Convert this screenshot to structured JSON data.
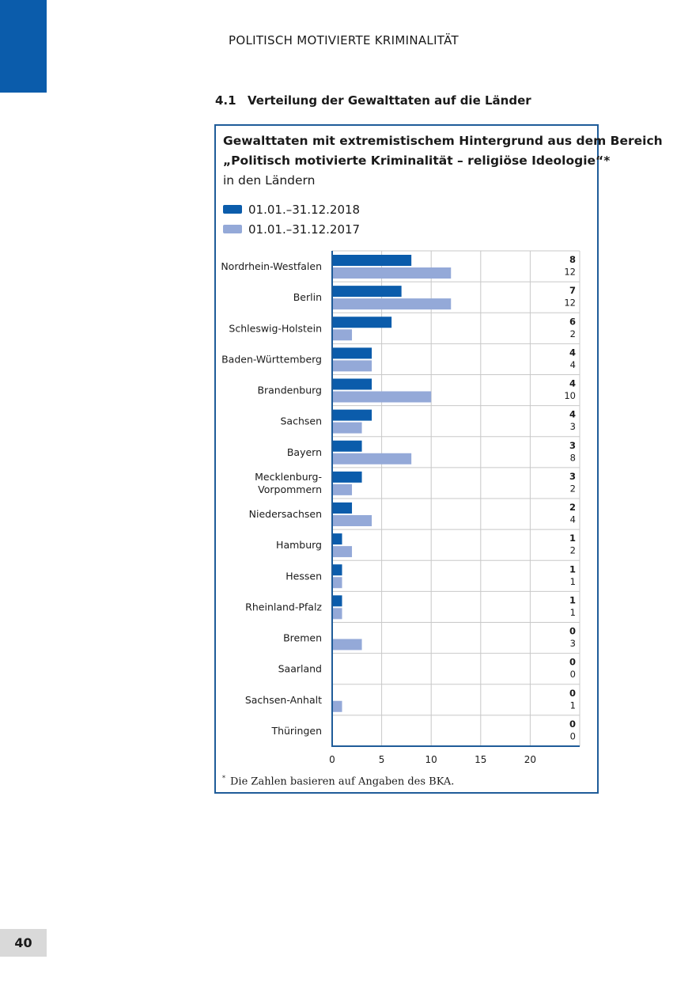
{
  "header": {
    "running_title": "POLITISCH MOTIVIERTE KRIMINALITÄT",
    "section_number": "4.1",
    "section_title": "Verteilung der Gewalttaten auf die Länder"
  },
  "page_number": "40",
  "footnote": {
    "mark": "*",
    "text": "Die Zahlen basieren auf Angaben des BKA."
  },
  "colors": {
    "series_2018": "#0b5cab",
    "series_2017": "#94a9d8",
    "frame": "#1f5c99"
  },
  "chart_data": {
    "type": "bar",
    "orientation": "horizontal",
    "title_line1": "Gewalttaten mit extremistischem Hintergrund aus dem Bereich",
    "title_line2": "„Politisch motivierte Kriminalität – religiöse Ideologie“*",
    "subtitle": "in den Ländern",
    "categories": [
      "Nordrhein-Westfalen",
      "Berlin",
      "Schleswig-Holstein",
      "Baden-Württemberg",
      "Brandenburg",
      "Sachsen",
      "Bayern",
      "Mecklenburg-\nVorpommern",
      "Niedersachsen",
      "Hamburg",
      "Hessen",
      "Rheinland-Pfalz",
      "Bremen",
      "Saarland",
      "Sachsen-Anhalt",
      "Thüringen"
    ],
    "series": [
      {
        "name": "01.01.–31.12.2018",
        "values": [
          8,
          7,
          6,
          4,
          4,
          4,
          3,
          3,
          2,
          1,
          1,
          1,
          0,
          0,
          0,
          0
        ]
      },
      {
        "name": "01.01.–31.12.2017",
        "values": [
          12,
          12,
          2,
          4,
          10,
          3,
          8,
          2,
          4,
          2,
          1,
          1,
          3,
          0,
          1,
          0
        ]
      }
    ],
    "xlim": [
      0,
      25
    ],
    "xticks": [
      0,
      5,
      10,
      15,
      20
    ],
    "grid": true,
    "legend_placement": "top-left"
  }
}
